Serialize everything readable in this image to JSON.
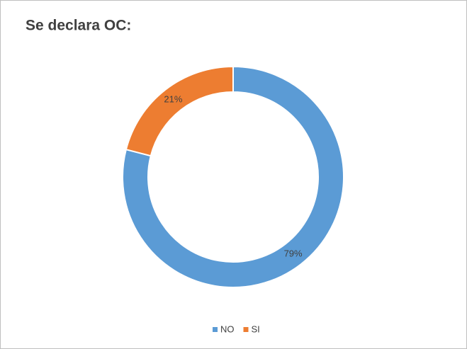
{
  "chart_data": {
    "type": "donut",
    "title": "Se declara OC:",
    "categories": [
      "NO",
      "SI"
    ],
    "values": [
      79,
      21
    ],
    "value_labels": [
      "79%",
      "21%"
    ],
    "colors": [
      "#5b9bd5",
      "#ed7d31"
    ]
  }
}
